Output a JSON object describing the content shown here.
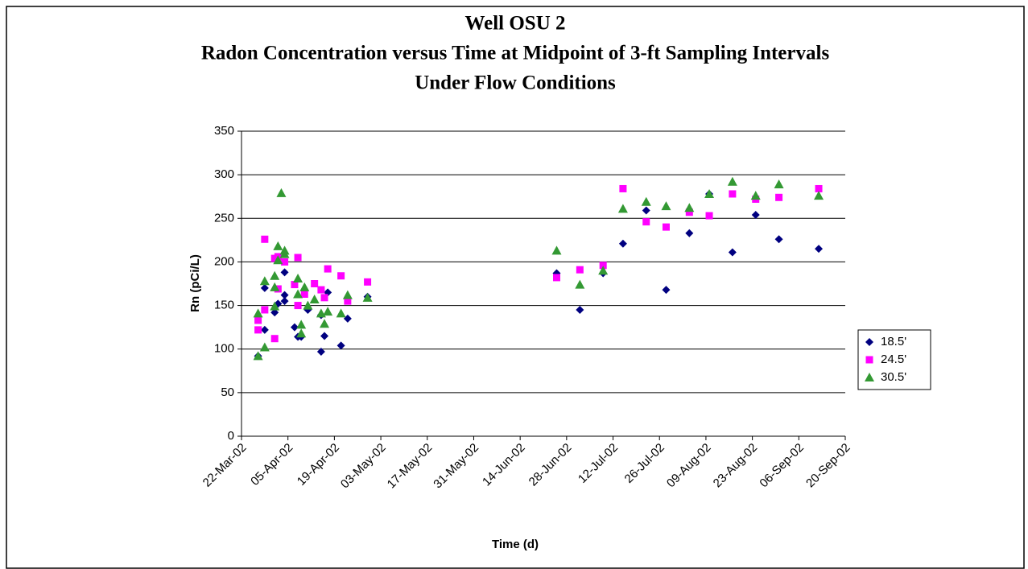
{
  "chart_data": {
    "type": "scatter",
    "title": [
      "Well OSU 2",
      "Radon Concentration versus Time at Midpoint of 3-ft Sampling Intervals",
      "Under Flow Conditions"
    ],
    "xlabel": "Time  (d)",
    "ylabel": "Rn (pCi/L)",
    "xlim": [
      "2002-03-22",
      "2002-09-20"
    ],
    "xticks": [
      {
        "value": "2002-03-22",
        "label": "22-Mar-02"
      },
      {
        "value": "2002-04-05",
        "label": "05-Apr-02"
      },
      {
        "value": "2002-04-19",
        "label": "19-Apr-02"
      },
      {
        "value": "2002-05-03",
        "label": "03-May-02"
      },
      {
        "value": "2002-05-17",
        "label": "17-May-02"
      },
      {
        "value": "2002-05-31",
        "label": "31-May-02"
      },
      {
        "value": "2002-06-14",
        "label": "14-Jun-02"
      },
      {
        "value": "2002-06-28",
        "label": "28-Jun-02"
      },
      {
        "value": "2002-07-12",
        "label": "12-Jul-02"
      },
      {
        "value": "2002-07-26",
        "label": "26-Jul-02"
      },
      {
        "value": "2002-08-09",
        "label": "09-Aug-02"
      },
      {
        "value": "2002-08-23",
        "label": "23-Aug-02"
      },
      {
        "value": "2002-09-06",
        "label": "06-Sep-02"
      },
      {
        "value": "2002-09-20",
        "label": "20-Sep-02"
      }
    ],
    "ylim": [
      0,
      350
    ],
    "yticks": [
      0,
      50,
      100,
      150,
      200,
      250,
      300,
      350
    ],
    "grid": true,
    "legend": "right",
    "series": [
      {
        "name": "18.5'",
        "color": "#000080",
        "marker": "diamond",
        "x": [
          "2002-03-27",
          "2002-03-29",
          "2002-03-29",
          "2002-04-01",
          "2002-04-02",
          "2002-04-04",
          "2002-04-04",
          "2002-04-04",
          "2002-04-07",
          "2002-04-08",
          "2002-04-09",
          "2002-04-11",
          "2002-04-15",
          "2002-04-15",
          "2002-04-16",
          "2002-04-17",
          "2002-04-21",
          "2002-04-23",
          "2002-04-29",
          "2002-06-25",
          "2002-07-02",
          "2002-07-09",
          "2002-07-15",
          "2002-07-22",
          "2002-07-28",
          "2002-08-04",
          "2002-08-10",
          "2002-08-17",
          "2002-08-24",
          "2002-08-31",
          "2002-09-12"
        ],
        "values": [
          92,
          122,
          170,
          142,
          152,
          162,
          188,
          155,
          125,
          114,
          114,
          145,
          97,
          139,
          115,
          165,
          104,
          135,
          160,
          187,
          145,
          187,
          221,
          259,
          168,
          233,
          278,
          211,
          254,
          226,
          215
        ]
      },
      {
        "name": "24.5'",
        "color": "#ff00ff",
        "marker": "square",
        "x": [
          "2002-03-27",
          "2002-03-27",
          "2002-03-29",
          "2002-03-29",
          "2002-04-01",
          "2002-04-01",
          "2002-04-02",
          "2002-04-02",
          "2002-04-04",
          "2002-04-08",
          "2002-04-07",
          "2002-04-08",
          "2002-04-10",
          "2002-04-13",
          "2002-04-15",
          "2002-04-16",
          "2002-04-17",
          "2002-04-21",
          "2002-04-23",
          "2002-04-29",
          "2002-06-25",
          "2002-07-02",
          "2002-07-09",
          "2002-07-15",
          "2002-07-22",
          "2002-07-28",
          "2002-08-04",
          "2002-08-10",
          "2002-08-17",
          "2002-08-24",
          "2002-08-31",
          "2002-09-12"
        ],
        "values": [
          122,
          133,
          226,
          145,
          112,
          204,
          206,
          169,
          200,
          205,
          174,
          150,
          163,
          175,
          168,
          159,
          192,
          184,
          155,
          177,
          182,
          191,
          196,
          284,
          246,
          240,
          257,
          253,
          278,
          272,
          274,
          284
        ]
      },
      {
        "name": "30.5'",
        "color": "#339933",
        "marker": "triangle",
        "x": [
          "2002-03-27",
          "2002-03-27",
          "2002-03-29",
          "2002-03-29",
          "2002-04-01",
          "2002-04-01",
          "2002-04-01",
          "2002-04-02",
          "2002-04-02",
          "2002-04-03",
          "2002-04-04",
          "2002-04-04",
          "2002-04-08",
          "2002-04-08",
          "2002-04-09",
          "2002-04-09",
          "2002-04-10",
          "2002-04-11",
          "2002-04-13",
          "2002-04-15",
          "2002-04-16",
          "2002-04-17",
          "2002-04-21",
          "2002-04-23",
          "2002-04-29",
          "2002-06-25",
          "2002-07-02",
          "2002-07-09",
          "2002-07-15",
          "2002-07-22",
          "2002-07-28",
          "2002-08-04",
          "2002-08-10",
          "2002-08-17",
          "2002-08-24",
          "2002-08-31",
          "2002-09-12"
        ],
        "values": [
          92,
          141,
          102,
          178,
          149,
          184,
          171,
          218,
          202,
          279,
          209,
          213,
          181,
          163,
          118,
          128,
          171,
          150,
          157,
          141,
          129,
          143,
          141,
          162,
          159,
          213,
          174,
          190,
          261,
          269,
          264,
          262,
          278,
          292,
          276,
          289,
          276
        ]
      }
    ]
  }
}
